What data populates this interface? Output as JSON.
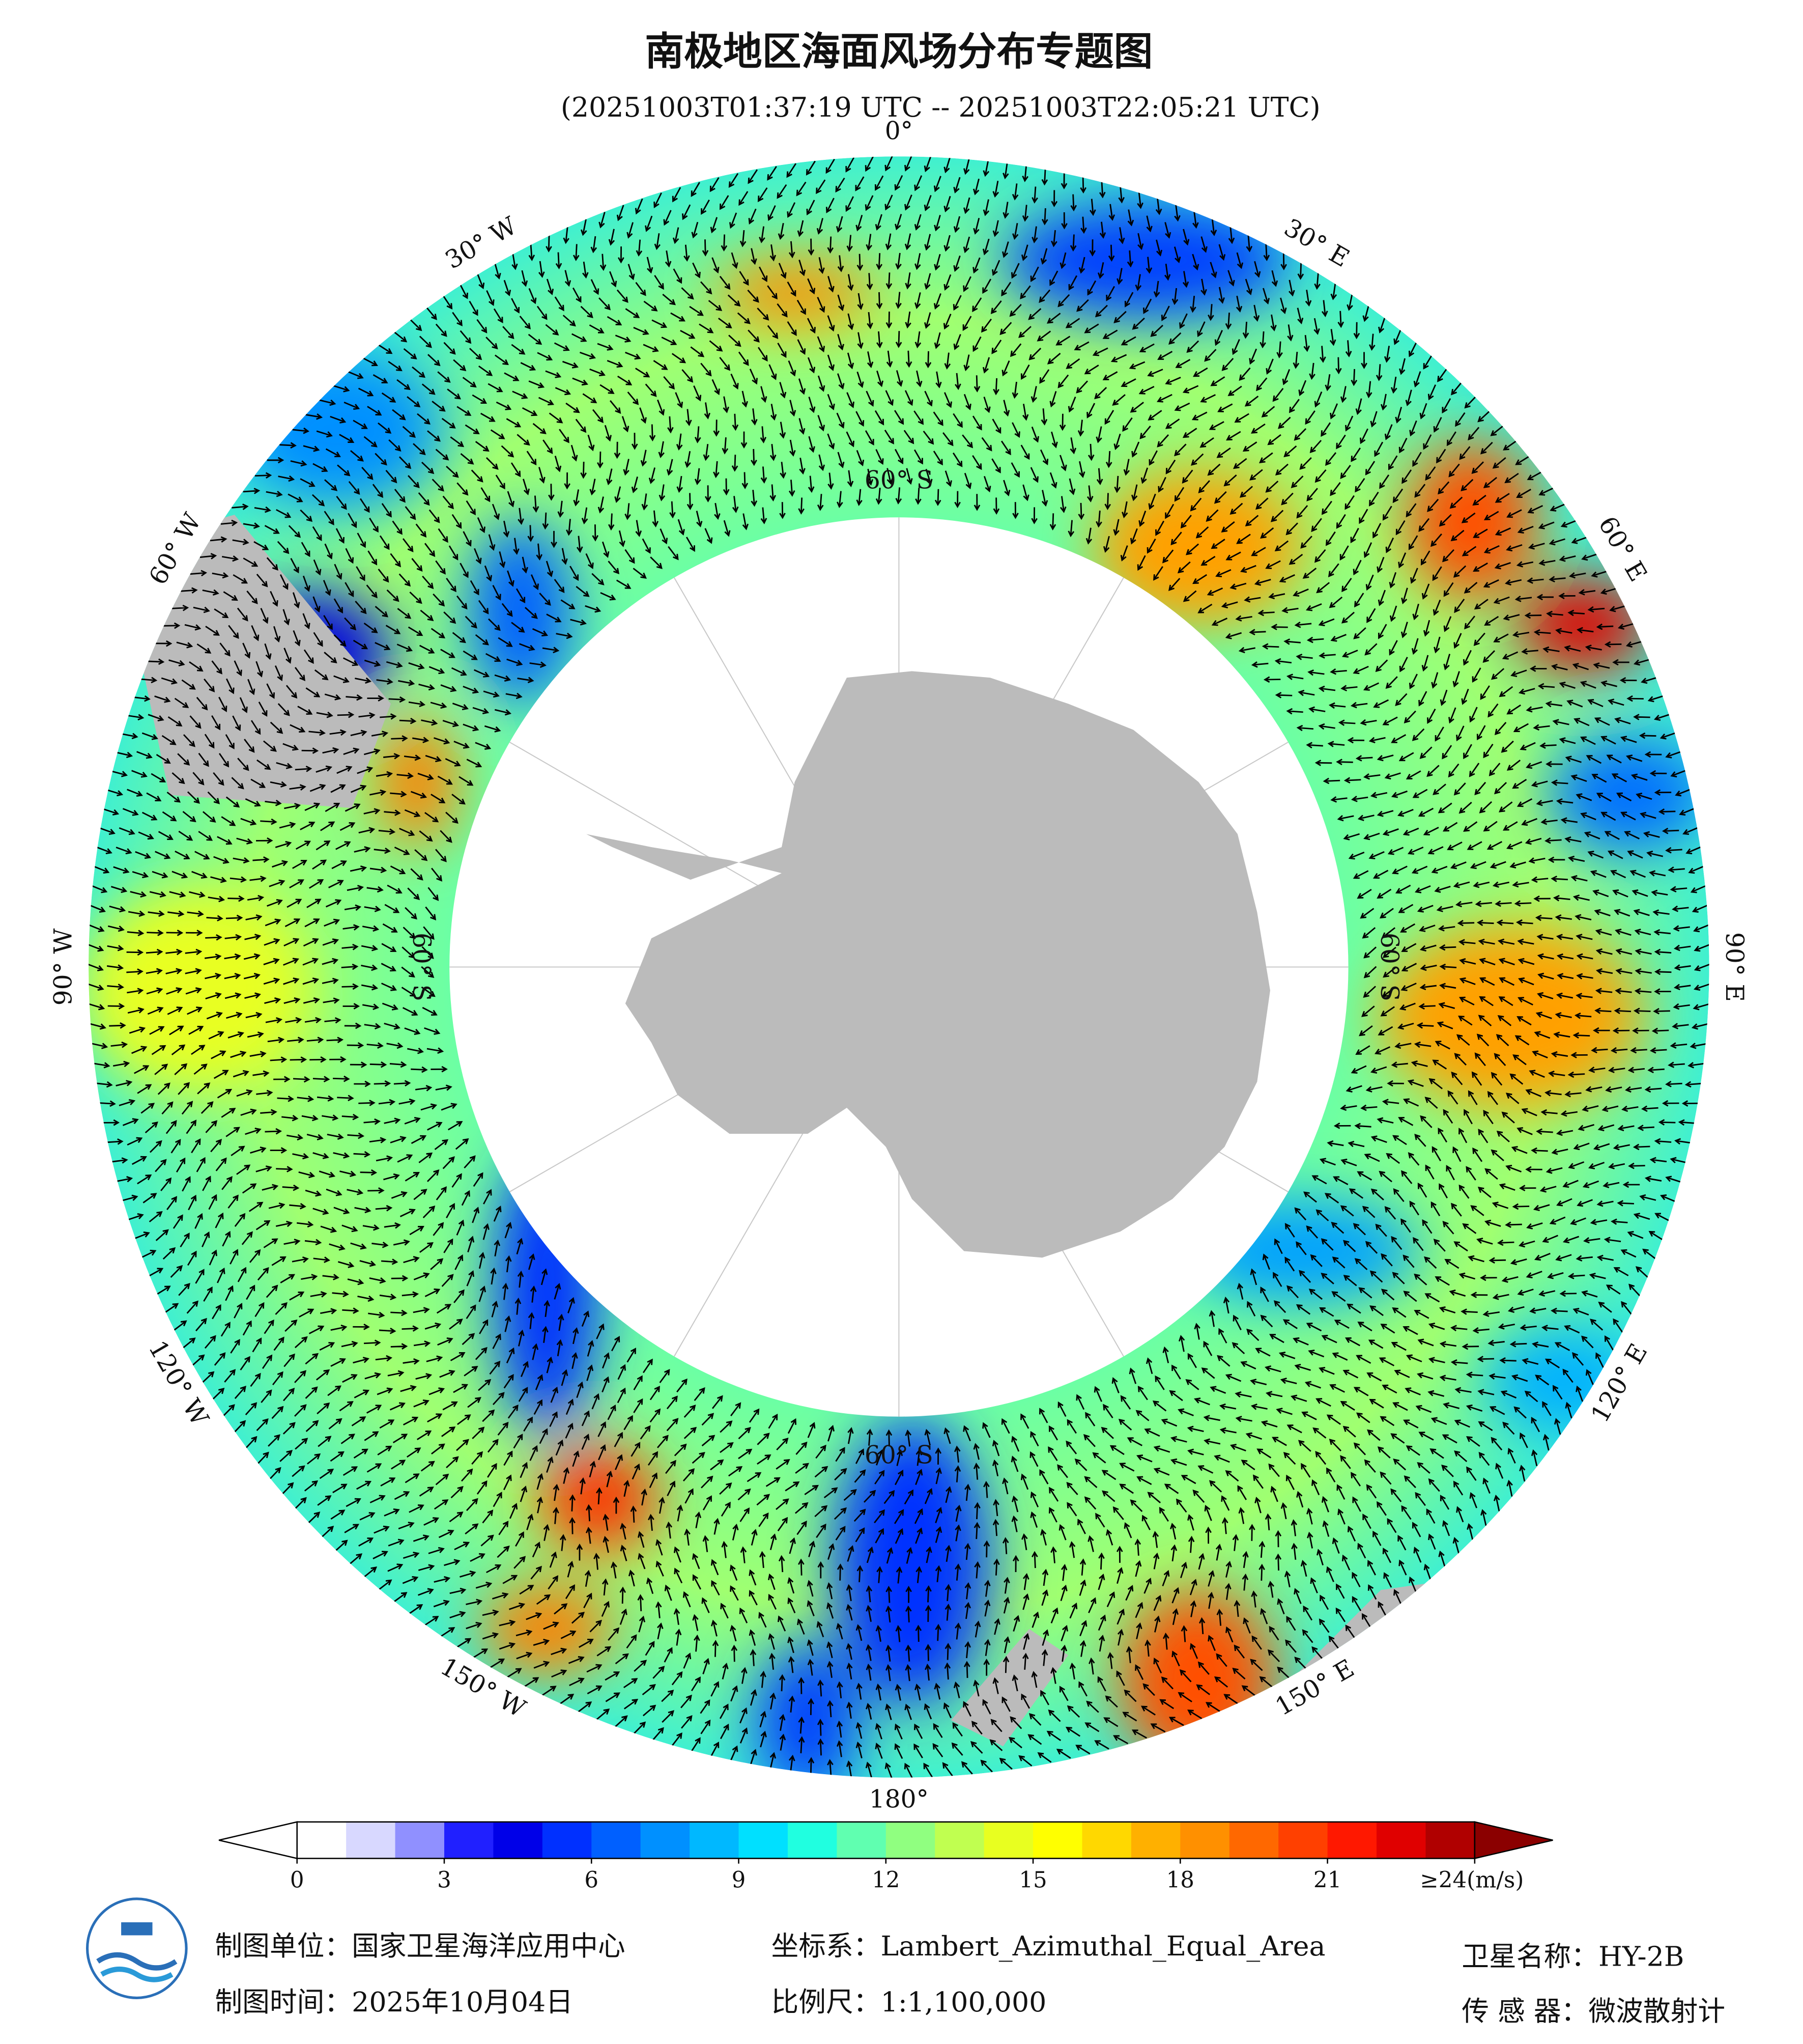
{
  "header": {
    "title": "南极地区海面风场分布专题图",
    "subtitle": "(20251003T01:37:19 UTC -- 20251003T22:05:21 UTC)"
  },
  "map": {
    "longitude_labels": [
      "0°",
      "30° E",
      "60° E",
      "90° E",
      "120° E",
      "150° E",
      "180°",
      "150° W",
      "120° W",
      "90° W",
      "60° W",
      "30° W"
    ],
    "latitude_labels": [
      "60° S",
      "60° S",
      "60° S",
      "60° S"
    ]
  },
  "colorbar": {
    "range": [
      0,
      24
    ],
    "ticks": [
      0,
      3,
      6,
      9,
      12,
      15,
      18,
      21,
      {
        "value": 24,
        "label": "≥24(m/s)"
      }
    ],
    "colors": [
      "#ffffff",
      "#d8d8ff",
      "#9090ff",
      "#2020ff",
      "#0000e8",
      "#0030ff",
      "#0060ff",
      "#0090ff",
      "#00b8ff",
      "#00e0ff",
      "#20ffe0",
      "#60ffb0",
      "#90ff80",
      "#c0ff50",
      "#e8ff20",
      "#ffff00",
      "#ffd800",
      "#ffb000",
      "#ff9000",
      "#ff6800",
      "#ff4000",
      "#ff1800",
      "#e00000",
      "#b00000"
    ],
    "over_color": "#8b0000",
    "under_color": "#ffffff"
  },
  "footer": {
    "unit": "制图单位：国家卫星海洋应用中心",
    "date": "制图时间：2025年10月04日",
    "crs": "坐标系：Lambert_Azimuthal_Equal_Area",
    "scale": "比例尺：1:1,100,000",
    "satellite": "卫星名称：HY-2B",
    "sensor": "传 感 器：微波散射计"
  }
}
